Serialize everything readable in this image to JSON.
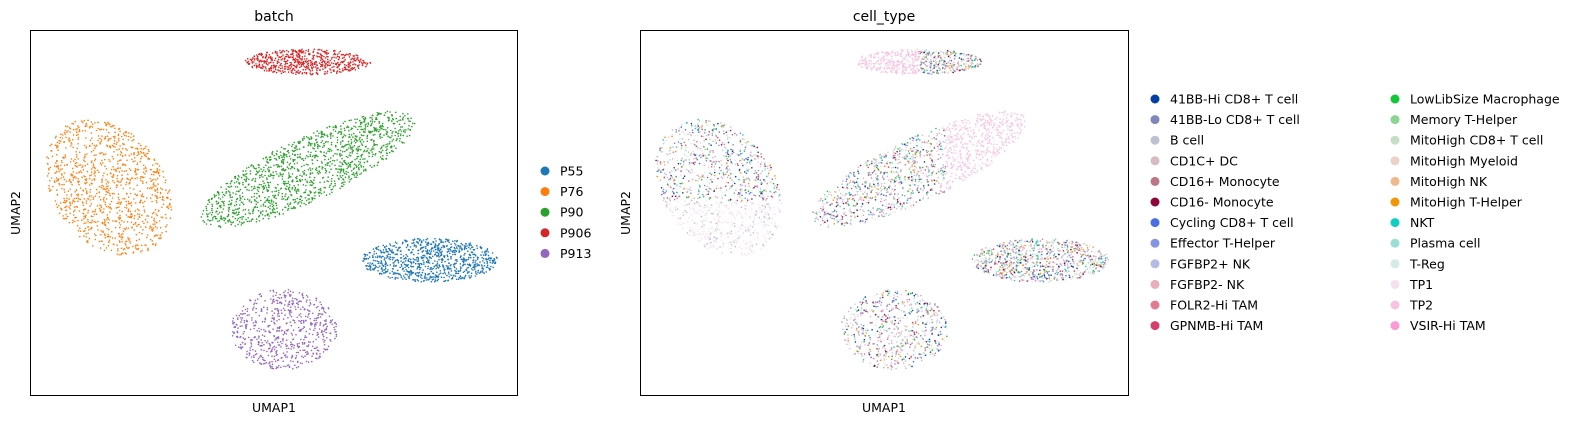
{
  "chart_data": [
    {
      "type": "scatter",
      "title": "batch",
      "xlabel": "UMAP1",
      "ylabel": "UMAP2",
      "xlim": [
        0,
        100
      ],
      "ylim": [
        0,
        100
      ],
      "grid": false,
      "legend_placement": "right",
      "legend": [
        {
          "label": "P55",
          "color": "#1f77b4"
        },
        {
          "label": "P76",
          "color": "#ff7f0e"
        },
        {
          "label": "P90",
          "color": "#2ca02c"
        },
        {
          "label": "P906",
          "color": "#d62728"
        },
        {
          "label": "P913",
          "color": "#9467bd"
        }
      ],
      "clusters": [
        {
          "label": "P906",
          "color": "#d62728",
          "center": [
            57,
            91.5
          ],
          "extent": [
            13,
            3.5
          ],
          "n": 600
        },
        {
          "label": "P76",
          "color": "#ff7f0e",
          "center": [
            16,
            57
          ],
          "extent": [
            13,
            18
          ],
          "n": 1100
        },
        {
          "label": "P90",
          "color": "#2ca02c",
          "center": [
            57,
            62
          ],
          "extent": [
            22,
            16
          ],
          "n": 1400
        },
        {
          "label": "P55",
          "color": "#1f77b4",
          "center": [
            82,
            37
          ],
          "extent": [
            14,
            6
          ],
          "n": 900
        },
        {
          "label": "P913",
          "color": "#9467bd",
          "center": [
            52,
            18
          ],
          "extent": [
            11,
            11
          ],
          "n": 650
        }
      ]
    },
    {
      "type": "scatter",
      "title": "cell_type",
      "xlabel": "UMAP1",
      "ylabel": "UMAP2",
      "xlim": [
        0,
        100
      ],
      "ylim": [
        0,
        100
      ],
      "grid": false,
      "legend_placement": "right",
      "legend": [
        {
          "label": "41BB-Hi CD8+ T cell",
          "color": "#023fa5"
        },
        {
          "label": "41BB-Lo CD8+ T cell",
          "color": "#7d87b9"
        },
        {
          "label": "B cell",
          "color": "#bec1d4"
        },
        {
          "label": "CD1C+ DC",
          "color": "#d6bcc0"
        },
        {
          "label": "CD16+ Monocyte",
          "color": "#bb7784"
        },
        {
          "label": "CD16- Monocyte",
          "color": "#8e063b"
        },
        {
          "label": "Cycling CD8+ T cell",
          "color": "#4a6fe3"
        },
        {
          "label": "Effector T-Helper",
          "color": "#8595e1"
        },
        {
          "label": "FGFBP2+ NK",
          "color": "#b5bbe3"
        },
        {
          "label": "FGFBP2- NK",
          "color": "#e6afb9"
        },
        {
          "label": "FOLR2-Hi TAM",
          "color": "#e07b91"
        },
        {
          "label": "GPNMB-Hi TAM",
          "color": "#d33f6a"
        },
        {
          "label": "LowLibSize Macrophage",
          "color": "#11c638"
        },
        {
          "label": "Memory T-Helper",
          "color": "#8dd593"
        },
        {
          "label": "MitoHigh CD8+ T cell",
          "color": "#c6dec7"
        },
        {
          "label": "MitoHigh Myeloid",
          "color": "#ead3c6"
        },
        {
          "label": "MitoHigh NK",
          "color": "#f0b98d"
        },
        {
          "label": "MitoHigh T-Helper",
          "color": "#ef9708"
        },
        {
          "label": "NKT",
          "color": "#0fcfc0"
        },
        {
          "label": "Plasma cell",
          "color": "#9cded6"
        },
        {
          "label": "T-Reg",
          "color": "#d5eae7"
        },
        {
          "label": "TP1",
          "color": "#f3e1eb"
        },
        {
          "label": "TP2",
          "color": "#f6c4e1"
        },
        {
          "label": "VSIR-Hi TAM",
          "color": "#f79cd4"
        }
      ]
    }
  ]
}
